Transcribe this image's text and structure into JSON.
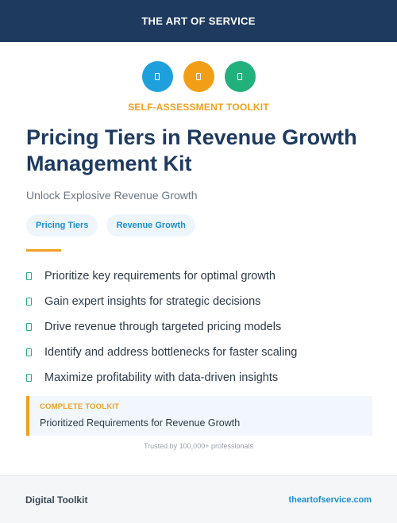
{
  "header": {
    "brand": "THE ART OF SERVICE"
  },
  "icons": [
    {
      "name": "document-icon",
      "color": "#1ea0dc"
    },
    {
      "name": "chart-icon",
      "color": "#f29f17"
    },
    {
      "name": "check-icon",
      "color": "#22b07d"
    }
  ],
  "kicker": "SELF-ASSESSMENT TOOLKIT",
  "title": "Pricing Tiers in Revenue Growth Management Kit",
  "subtitle": "Unlock Explosive Revenue Growth",
  "tags": [
    "Pricing Tiers",
    "Revenue Growth"
  ],
  "benefits": [
    "Prioritize key requirements for optimal growth",
    "Gain expert insights for strategic decisions",
    "Drive revenue through targeted pricing models",
    "Identify and address bottlenecks for faster scaling",
    "Maximize profitability with data-driven insights"
  ],
  "callout": {
    "label": "COMPLETE TOOLKIT",
    "value": "Prioritized Requirements for Revenue Growth"
  },
  "trusted": "Trusted by 100,000+ professionals",
  "footer": {
    "left": "Digital Toolkit",
    "right": "theartofservice.com"
  },
  "colors": {
    "navy": "#1e3a5f",
    "accent_orange": "#f0a020",
    "accent_blue": "#1a8ed0",
    "accent_green": "#22b07d"
  }
}
